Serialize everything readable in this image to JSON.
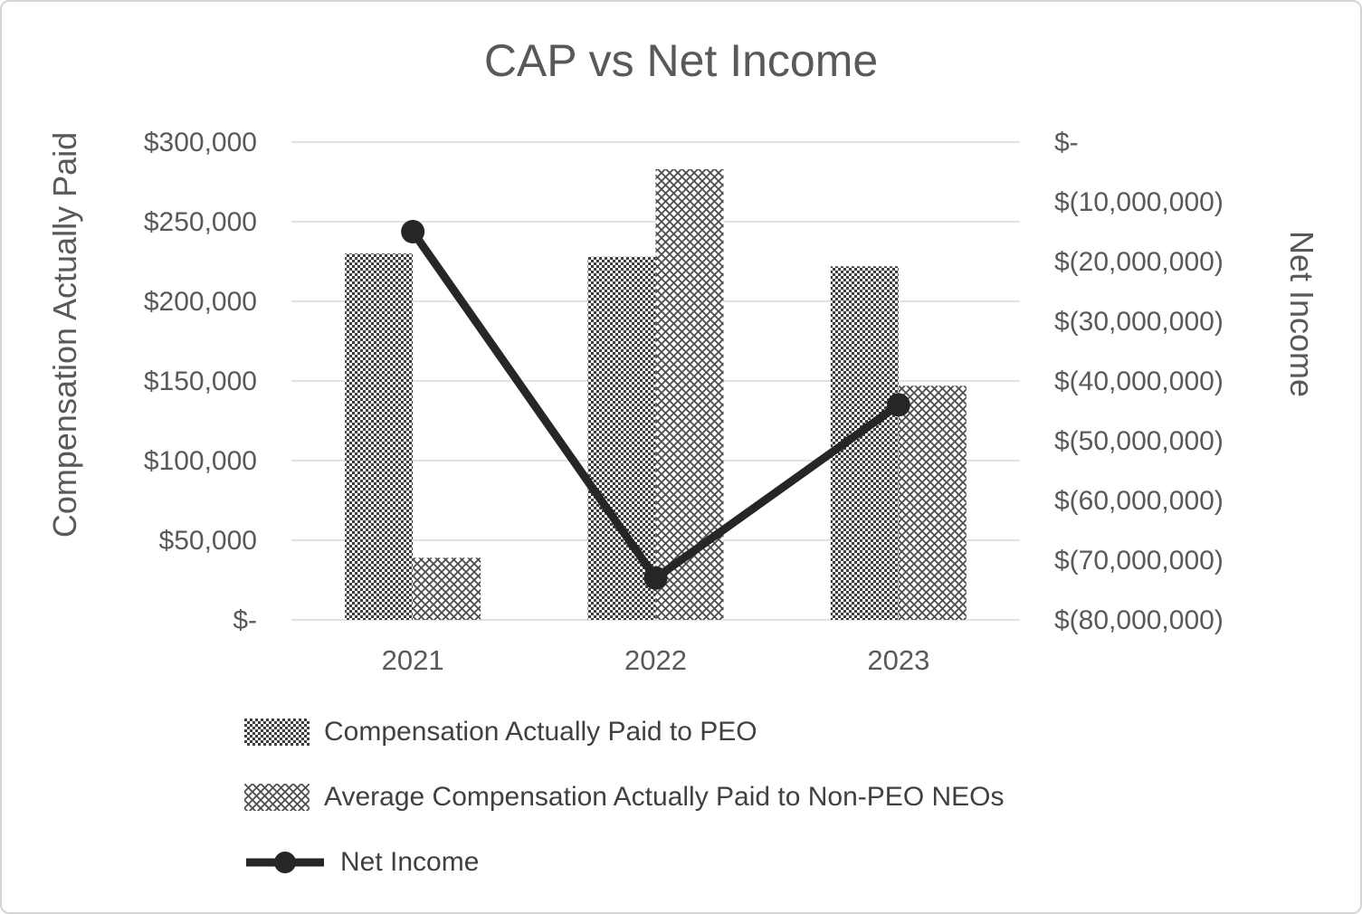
{
  "frame": {
    "border_color": "#d4d4d4",
    "background": "#ffffff"
  },
  "chart_data": {
    "type": "combo-bar-line",
    "title": "CAP vs Net Income",
    "categories": [
      "2021",
      "2022",
      "2023"
    ],
    "bar_series": [
      {
        "name": "Compensation Actually Paid to PEO",
        "values": [
          230000,
          228000,
          222000
        ],
        "pattern": "dark-checker"
      },
      {
        "name": "Average Compensation Actually Paid to Non-PEO NEOs",
        "values": [
          39000,
          283000,
          147000
        ],
        "pattern": "light-diagonal-checker"
      }
    ],
    "line_series": {
      "name": "Net Income",
      "values": [
        -15000000,
        -73000000,
        -44000000
      ],
      "color": "#262626",
      "axis": "right"
    },
    "left_axis": {
      "label": "Compensation Actually Paid",
      "min": 0,
      "max": 300000,
      "step": 50000,
      "tick_labels": [
        "$-",
        "$50,000",
        "$100,000",
        "$150,000",
        "$200,000",
        "$250,000",
        "$300,000"
      ]
    },
    "right_axis": {
      "label": "Net Income",
      "min": -80000000,
      "max": 0,
      "step": 10000000,
      "tick_labels": [
        "$-",
        "$(10,000,000)",
        "$(20,000,000)",
        "$(30,000,000)",
        "$(40,000,000)",
        "$(50,000,000)",
        "$(60,000,000)",
        "$(70,000,000)",
        "$(80,000,000)"
      ]
    },
    "grid": true,
    "grid_color": "#d9d9d9",
    "text_color": "#595959",
    "legend_position": "bottom-left",
    "legend": [
      {
        "label": "Compensation Actually Paid to PEO",
        "marker": "bar-dark-checker"
      },
      {
        "label": "Average Compensation Actually Paid to Non-PEO NEOs",
        "marker": "bar-light-checker"
      },
      {
        "label": "Net Income",
        "marker": "line-dot"
      }
    ]
  }
}
